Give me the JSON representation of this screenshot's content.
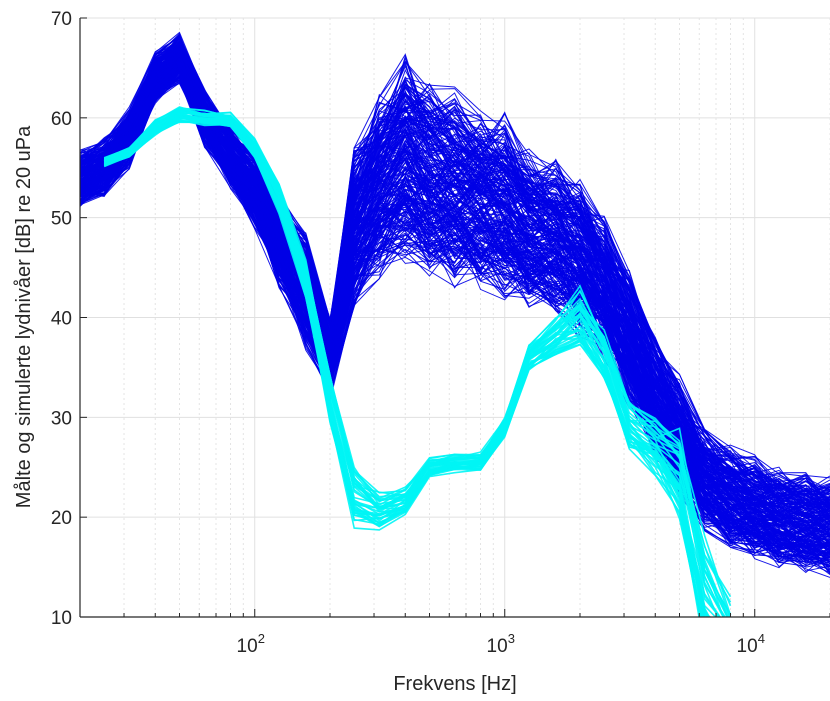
{
  "chart_data": {
    "type": "line",
    "xscale": "log",
    "xlabel": "Frekvens [Hz]",
    "ylabel": "Målte og simulerte lydnivåer [dB] re 20 uPa",
    "xlim": [
      20,
      20000
    ],
    "ylim": [
      10,
      70
    ],
    "yticks": [
      10,
      20,
      30,
      40,
      50,
      60,
      70
    ],
    "xticks": [
      {
        "value": 100,
        "base": "10",
        "exp": "2"
      },
      {
        "value": 1000,
        "base": "10",
        "exp": "3"
      },
      {
        "value": 10000,
        "base": "10",
        "exp": "4"
      }
    ],
    "grid": true,
    "x": [
      20,
      25,
      31.5,
      40,
      50,
      63,
      80,
      100,
      125,
      160,
      200,
      250,
      315,
      400,
      500,
      630,
      800,
      1000,
      1250,
      1600,
      2000,
      2500,
      3150,
      4000,
      5000,
      6300,
      8000,
      10000,
      12500,
      16000,
      20000
    ],
    "series": [
      {
        "group": "measured",
        "color": "#0000e6",
        "count": 260,
        "x_start": 20,
        "x_end": 20000,
        "values": [
          54,
          55,
          58,
          64,
          66,
          60,
          56,
          53,
          48,
          43,
          36,
          49,
          53,
          56,
          54,
          53,
          52,
          51,
          49,
          48,
          46,
          43,
          38,
          32,
          28,
          24,
          22,
          21,
          20,
          19.5,
          19
        ],
        "spread": [
          3,
          3,
          3,
          2.5,
          2.5,
          3,
          3,
          4,
          5,
          6,
          4,
          8,
          9,
          10,
          10,
          10,
          9,
          9,
          8,
          8,
          8,
          7,
          7,
          6,
          6,
          5,
          5,
          5,
          5,
          5,
          5
        ]
      },
      {
        "group": "simulated",
        "color": "#00f5f5",
        "count": 40,
        "x_start": 25,
        "x_end": 8000,
        "values": [
          55,
          55.5,
          56.5,
          59,
          60.3,
          60,
          59.8,
          57,
          52,
          44,
          32,
          22,
          20.5,
          21.5,
          25,
          25.5,
          25.5,
          29,
          36,
          38,
          40,
          36,
          29,
          27,
          24,
          12,
          8,
          8,
          8,
          8,
          8
        ],
        "spread": [
          0.4,
          0.5,
          0.5,
          0.8,
          0.8,
          0.8,
          0.8,
          1,
          1.5,
          2,
          3,
          3,
          2,
          1.5,
          1,
          1,
          1,
          1,
          1.5,
          2,
          3,
          3,
          3,
          3,
          5,
          6,
          4,
          4,
          4,
          4,
          4
        ]
      }
    ]
  }
}
